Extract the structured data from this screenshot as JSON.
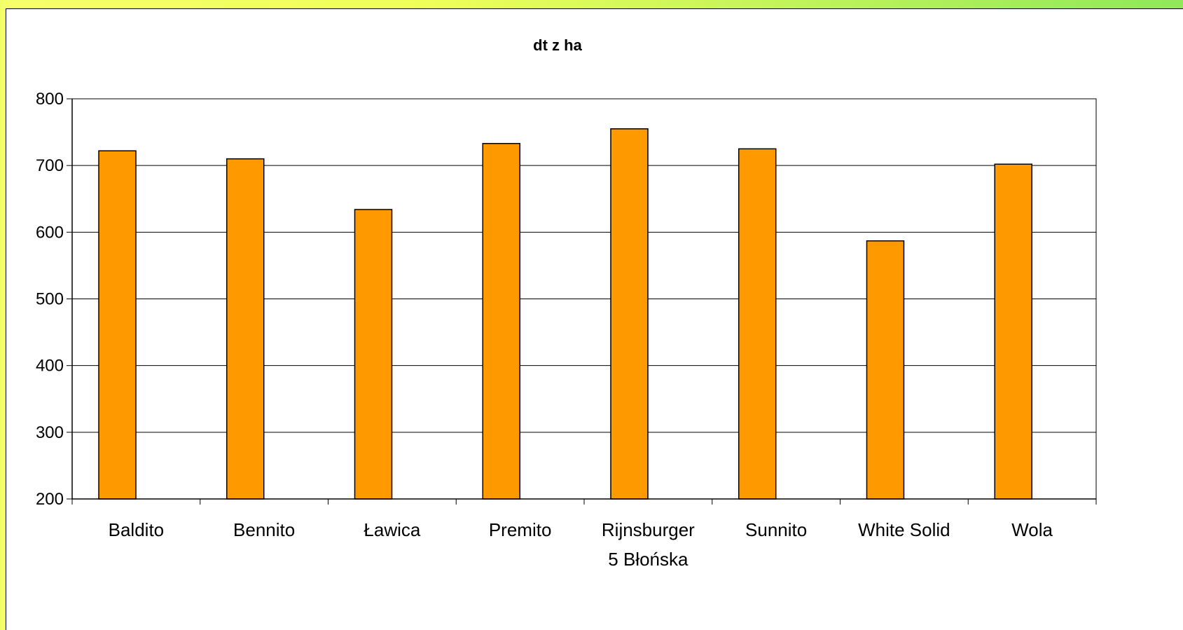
{
  "chart_data": {
    "type": "bar",
    "title": "dt z ha",
    "xlabel": "",
    "ylabel": "",
    "categories": [
      "Baldito",
      "Bennito",
      "Ławica",
      "Premito",
      "Rijnsburger 5 Błońska",
      "Sunnito",
      "White Solid",
      "Wola"
    ],
    "values": [
      722,
      710,
      634,
      733,
      755,
      725,
      587,
      702
    ],
    "ylim": [
      200,
      800
    ],
    "yticks": [
      200,
      300,
      400,
      500,
      600,
      700,
      800
    ],
    "ytick_labels": [
      "200",
      "300",
      "400",
      "500",
      "600",
      "700",
      "800"
    ],
    "grid": true,
    "legend": "none",
    "bar_color": "#ff9900",
    "bar_edge_color": "#000000",
    "plot_background": "#ffffff"
  }
}
